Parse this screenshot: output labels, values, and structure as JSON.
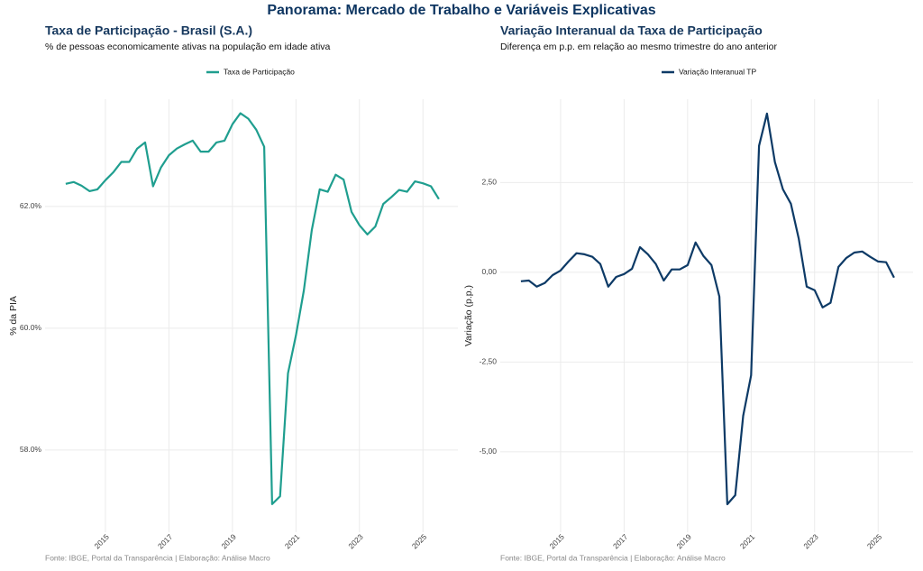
{
  "title": "Panorama: Mercado de Trabalho e Variáveis Explicativas",
  "chart_data": [
    {
      "type": "line",
      "title": "Taxa de Participação - Brasil (S.A.)",
      "subtitle": "% de pessoas economicamente ativas na população em idade ativa",
      "y_label": "% da PIA",
      "caption": "Fonte: IBGE, Portal da Transparência | Elaboração: Análise Macro",
      "grid": true,
      "legend": "top",
      "x": [
        2013.75,
        2014,
        2014.25,
        2014.5,
        2014.75,
        2015,
        2015.25,
        2015.5,
        2015.75,
        2016,
        2016.25,
        2016.5,
        2016.75,
        2017,
        2017.25,
        2017.5,
        2017.75,
        2018,
        2018.25,
        2018.5,
        2018.75,
        2019,
        2019.25,
        2019.5,
        2019.75,
        2020,
        2020.25,
        2020.5,
        2020.75,
        2021,
        2021.25,
        2021.5,
        2021.75,
        2022,
        2022.25,
        2022.5,
        2022.75,
        2023,
        2023.25,
        2023.5,
        2023.75,
        2024,
        2024.25,
        2024.5,
        2024.75,
        2025,
        2025.25,
        2025.5
      ],
      "xlim": [
        2013.1,
        2026.1
      ],
      "xticks": [
        2015,
        2017,
        2019,
        2021,
        2023,
        2025
      ],
      "ylim": [
        56.65,
        63.76
      ],
      "yticks": [
        {
          "value": 58,
          "label": "58.0%"
        },
        {
          "value": 60,
          "label": "60.0%"
        },
        {
          "value": 62,
          "label": "62.0%"
        }
      ],
      "series": [
        {
          "name": "Taxa de Participação",
          "color": "#1f9e8f",
          "values": [
            62.37,
            62.4,
            62.34,
            62.25,
            62.28,
            62.43,
            62.56,
            62.73,
            62.73,
            62.95,
            63.05,
            62.33,
            62.64,
            62.84,
            62.95,
            63.02,
            63.08,
            62.9,
            62.9,
            63.05,
            63.08,
            63.35,
            63.53,
            63.44,
            63.26,
            62.98,
            57.11,
            57.24,
            59.26,
            59.88,
            60.62,
            61.61,
            62.28,
            62.24,
            62.52,
            62.44,
            61.91,
            61.69,
            61.54,
            61.67,
            62.04,
            62.15,
            62.27,
            62.24,
            62.41,
            62.38,
            62.33,
            62.12
          ]
        }
      ]
    },
    {
      "type": "line",
      "title": "Variação Interanual da Taxa de Participação",
      "subtitle": "Diferença em p.p. em relação ao mesmo trimestre do ano anterior",
      "y_label": "Variação (p.p.)",
      "caption": "Fonte: IBGE, Portal da Transparência | Elaboração: Análise Macro",
      "grid": true,
      "legend": "top",
      "x": [
        2013.75,
        2014,
        2014.25,
        2014.5,
        2014.75,
        2015,
        2015.25,
        2015.5,
        2015.75,
        2016,
        2016.25,
        2016.5,
        2016.75,
        2017,
        2017.25,
        2017.5,
        2017.75,
        2018,
        2018.25,
        2018.5,
        2018.75,
        2019,
        2019.25,
        2019.5,
        2019.75,
        2020,
        2020.25,
        2020.5,
        2020.75,
        2021,
        2021.25,
        2021.5,
        2021.75,
        2022,
        2022.25,
        2022.5,
        2022.75,
        2023,
        2023.25,
        2023.5,
        2023.75,
        2024,
        2024.25,
        2024.5,
        2024.75,
        2025,
        2025.25,
        2025.5
      ],
      "xlim": [
        2013.1,
        2026.1
      ],
      "xticks": [
        2015,
        2017,
        2019,
        2021,
        2023,
        2025
      ],
      "ylim": [
        -7.24,
        4.82
      ],
      "yticks": [
        {
          "value": -5,
          "label": "-5,00"
        },
        {
          "value": -2.5,
          "label": "-2,50"
        },
        {
          "value": 0,
          "label": "0,00"
        },
        {
          "value": 2.5,
          "label": "2,50"
        }
      ],
      "series": [
        {
          "name": "Variação Interanual TP",
          "color": "#0d3a66",
          "values": [
            -0.25,
            -0.23,
            -0.4,
            -0.3,
            -0.08,
            0.05,
            0.3,
            0.53,
            0.5,
            0.43,
            0.23,
            -0.4,
            -0.13,
            -0.05,
            0.1,
            0.7,
            0.5,
            0.23,
            -0.23,
            0.08,
            0.08,
            0.2,
            0.83,
            0.45,
            0.2,
            -0.68,
            -6.46,
            -6.21,
            -4.0,
            -2.87,
            3.52,
            4.42,
            3.07,
            2.31,
            1.91,
            0.93,
            -0.4,
            -0.5,
            -0.98,
            -0.85,
            0.15,
            0.4,
            0.55,
            0.58,
            0.43,
            0.3,
            0.28,
            -0.15
          ]
        }
      ]
    }
  ]
}
